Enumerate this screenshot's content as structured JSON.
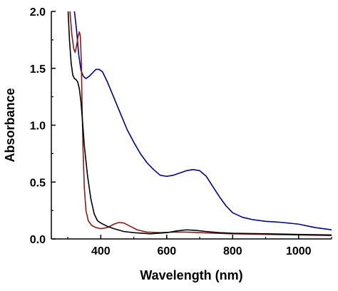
{
  "chart_data": {
    "type": "line",
    "title": "",
    "xlabel": "Wavelength (nm)",
    "ylabel": "Absorbance",
    "xlim": [
      250,
      1100
    ],
    "ylim": [
      0,
      2.0
    ],
    "x_ticks": [
      400,
      600,
      800,
      1000
    ],
    "x_tick_labels": [
      "400",
      "600",
      "800",
      "1000"
    ],
    "y_ticks": [
      0.0,
      0.5,
      1.0,
      1.5,
      2.0
    ],
    "y_tick_labels": [
      "0.0",
      "0.5",
      "1.0",
      "1.5",
      "2.0"
    ],
    "grid": false,
    "legend": false,
    "series": [
      {
        "color": "#00008b",
        "points": [
          [
            318,
            2.05
          ],
          [
            326,
            1.85
          ],
          [
            333,
            1.62
          ],
          [
            340,
            1.48
          ],
          [
            347,
            1.43
          ],
          [
            355,
            1.41
          ],
          [
            365,
            1.43
          ],
          [
            375,
            1.46
          ],
          [
            385,
            1.49
          ],
          [
            395,
            1.49
          ],
          [
            405,
            1.47
          ],
          [
            420,
            1.38
          ],
          [
            440,
            1.24
          ],
          [
            460,
            1.1
          ],
          [
            480,
            0.96
          ],
          [
            500,
            0.85
          ],
          [
            520,
            0.75
          ],
          [
            540,
            0.67
          ],
          [
            560,
            0.61
          ],
          [
            580,
            0.56
          ],
          [
            600,
            0.55
          ],
          [
            620,
            0.56
          ],
          [
            640,
            0.58
          ],
          [
            660,
            0.6
          ],
          [
            680,
            0.61
          ],
          [
            700,
            0.6
          ],
          [
            720,
            0.55
          ],
          [
            740,
            0.46
          ],
          [
            760,
            0.37
          ],
          [
            780,
            0.29
          ],
          [
            800,
            0.23
          ],
          [
            830,
            0.19
          ],
          [
            860,
            0.17
          ],
          [
            900,
            0.155
          ],
          [
            950,
            0.145
          ],
          [
            1000,
            0.13
          ],
          [
            1050,
            0.1
          ],
          [
            1100,
            0.08
          ]
        ]
      },
      {
        "color": "#8b1a1a",
        "points": [
          [
            305,
            2.05
          ],
          [
            312,
            1.8
          ],
          [
            318,
            1.67
          ],
          [
            322,
            1.64
          ],
          [
            326,
            1.69
          ],
          [
            331,
            1.78
          ],
          [
            335,
            1.82
          ],
          [
            338,
            1.78
          ],
          [
            341,
            1.55
          ],
          [
            343,
            1.2
          ],
          [
            346,
            0.8
          ],
          [
            350,
            0.45
          ],
          [
            355,
            0.25
          ],
          [
            362,
            0.16
          ],
          [
            372,
            0.12
          ],
          [
            385,
            0.1
          ],
          [
            400,
            0.09
          ],
          [
            420,
            0.1
          ],
          [
            440,
            0.13
          ],
          [
            455,
            0.145
          ],
          [
            470,
            0.14
          ],
          [
            490,
            0.11
          ],
          [
            510,
            0.08
          ],
          [
            540,
            0.06
          ],
          [
            580,
            0.055
          ],
          [
            620,
            0.06
          ],
          [
            660,
            0.06
          ],
          [
            700,
            0.055
          ],
          [
            800,
            0.045
          ],
          [
            900,
            0.04
          ],
          [
            1000,
            0.035
          ],
          [
            1100,
            0.03
          ]
        ]
      },
      {
        "color": "#000000",
        "points": [
          [
            300,
            2.05
          ],
          [
            305,
            1.75
          ],
          [
            310,
            1.55
          ],
          [
            315,
            1.44
          ],
          [
            320,
            1.41
          ],
          [
            325,
            1.4
          ],
          [
            330,
            1.38
          ],
          [
            335,
            1.32
          ],
          [
            340,
            1.2
          ],
          [
            345,
            1.02
          ],
          [
            350,
            0.82
          ],
          [
            360,
            0.55
          ],
          [
            370,
            0.35
          ],
          [
            380,
            0.22
          ],
          [
            390,
            0.16
          ],
          [
            400,
            0.14
          ],
          [
            420,
            0.11
          ],
          [
            440,
            0.09
          ],
          [
            470,
            0.065
          ],
          [
            500,
            0.055
          ],
          [
            550,
            0.045
          ],
          [
            600,
            0.055
          ],
          [
            630,
            0.07
          ],
          [
            660,
            0.08
          ],
          [
            690,
            0.075
          ],
          [
            720,
            0.065
          ],
          [
            760,
            0.055
          ],
          [
            800,
            0.05
          ],
          [
            900,
            0.045
          ],
          [
            1000,
            0.04
          ],
          [
            1100,
            0.035
          ]
        ]
      }
    ]
  }
}
